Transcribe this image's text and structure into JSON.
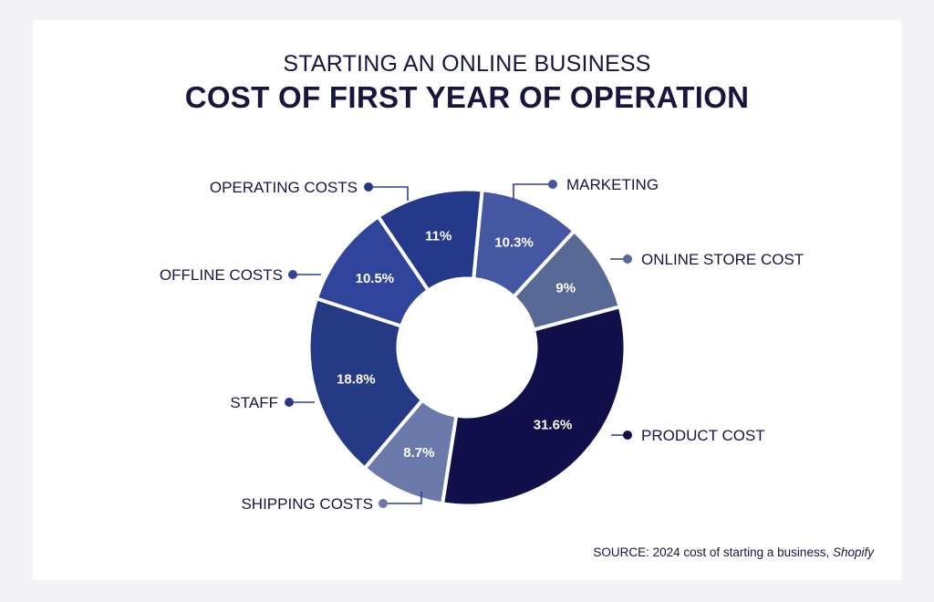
{
  "header": {
    "subtitle": "STARTING AN ONLINE BUSINESS",
    "title": "COST OF FIRST YEAR OF OPERATION"
  },
  "source": {
    "prefix": "SOURCE: 2024 cost of starting a business,",
    "publisher": "Shopify"
  },
  "chart_data": {
    "type": "pie",
    "donut": true,
    "title": "COST OF FIRST YEAR OF OPERATION",
    "subtitle": "STARTING AN ONLINE BUSINESS",
    "start_angle_deg": 5.5,
    "slices": [
      {
        "label": "MARKETING",
        "value": 10.3,
        "value_label": "10.3%",
        "color": "#4557a3"
      },
      {
        "label": "ONLINE STORE COST",
        "value": 9,
        "value_label": "9%",
        "color": "#596996"
      },
      {
        "label": "PRODUCT COST",
        "value": 31.6,
        "value_label": "31.6%",
        "color": "#11104a"
      },
      {
        "label": "SHIPPING COSTS",
        "value": 8.7,
        "value_label": "8.7%",
        "color": "#6c7aab"
      },
      {
        "label": "STAFF",
        "value": 18.8,
        "value_label": "18.8%",
        "color": "#253a85"
      },
      {
        "label": "OFFLINE COSTS",
        "value": 10.5,
        "value_label": "10.5%",
        "color": "#2f449a"
      },
      {
        "label": "OPERATING COSTS",
        "value": 11,
        "value_label": "11%",
        "color": "#24398a"
      }
    ],
    "legend": "callouts"
  }
}
